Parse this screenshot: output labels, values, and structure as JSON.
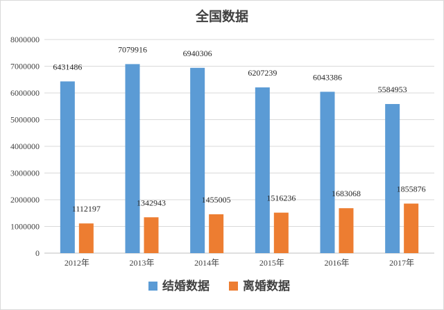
{
  "chart_data": {
    "type": "bar",
    "title": "全国数据",
    "categories": [
      "2012年",
      "2013年",
      "2014年",
      "2015年",
      "2016年",
      "2017年"
    ],
    "series": [
      {
        "name": "结婚数据",
        "color": "#5b9bd5",
        "values": [
          6431486,
          7079916,
          6940306,
          6207239,
          6043386,
          5584953
        ]
      },
      {
        "name": "离婚数据",
        "color": "#ed7d31",
        "values": [
          1112197,
          1342943,
          1455005,
          1516236,
          1683068,
          1855876
        ]
      }
    ],
    "ylim": [
      0,
      8000000
    ],
    "yticks": [
      "0",
      "1000000",
      "2000000",
      "3000000",
      "4000000",
      "5000000",
      "6000000",
      "7000000",
      "8000000"
    ],
    "grid": true,
    "legend": "bottom",
    "xlabel": "",
    "ylabel": ""
  }
}
